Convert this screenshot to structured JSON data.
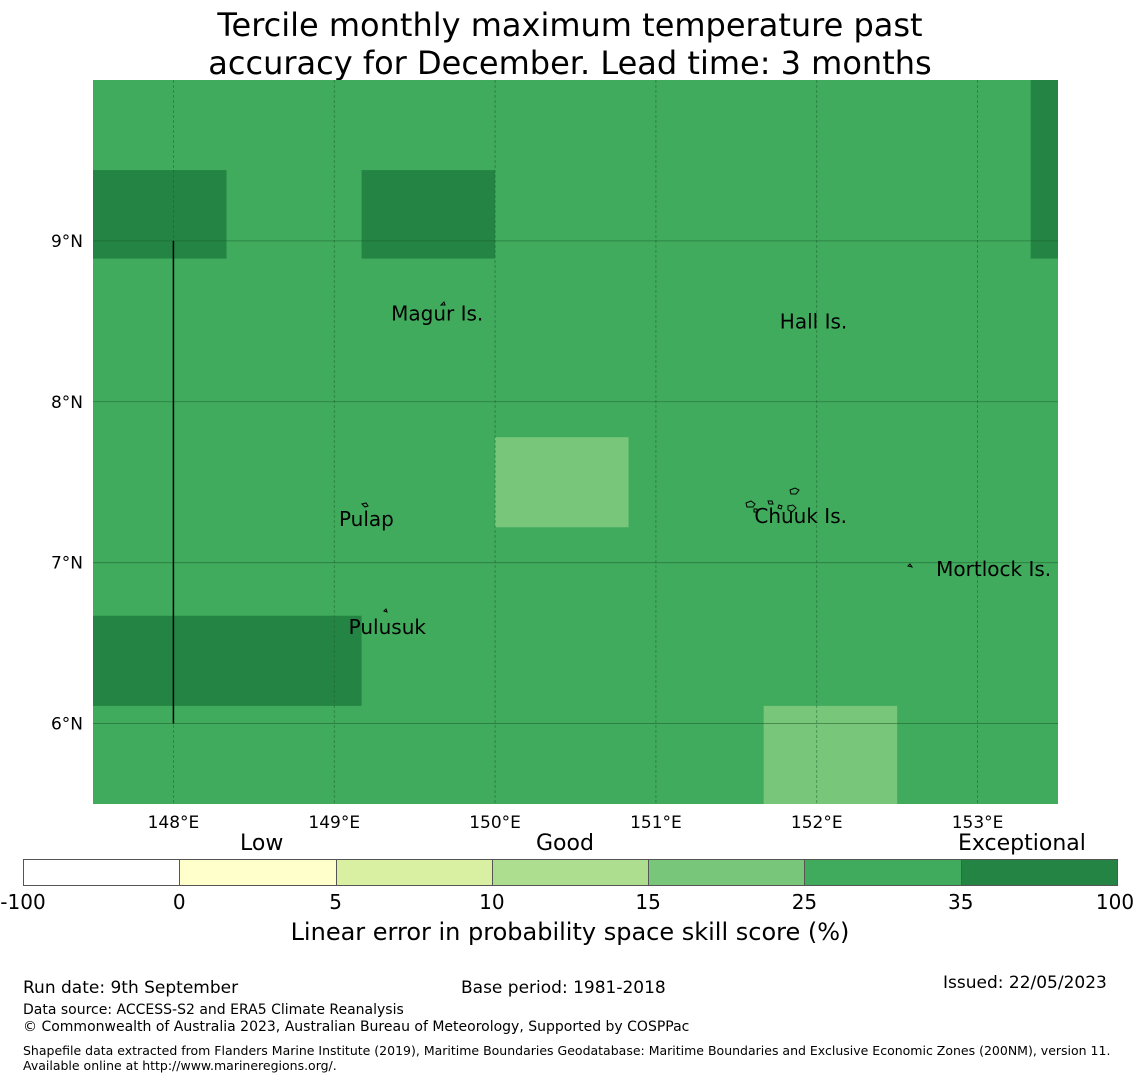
{
  "title_line1": "Tercile monthly maximum temperature past",
  "title_line2": "accuracy for December. Lead time: 3 months",
  "map": {
    "lon_range": [
      147.5,
      153.5
    ],
    "lat_range": [
      5.5,
      10.0
    ],
    "lon_ticks": [
      {
        "value": 148,
        "label": "148°E"
      },
      {
        "value": 149,
        "label": "149°E"
      },
      {
        "value": 150,
        "label": "150°E"
      },
      {
        "value": 151,
        "label": "151°E"
      },
      {
        "value": 152,
        "label": "152°E"
      },
      {
        "value": 153,
        "label": "153°E"
      }
    ],
    "lat_ticks": [
      {
        "value": 9,
        "label": "9°N"
      },
      {
        "value": 8,
        "label": "8°N"
      },
      {
        "value": 7,
        "label": "7°N"
      },
      {
        "value": 6,
        "label": "6°N"
      }
    ],
    "background_color": "#41ab5d",
    "cells": [
      {
        "lon0": 147.5,
        "lon1": 148.33,
        "lat0": 8.89,
        "lat1": 9.44,
        "color": "#238443"
      },
      {
        "lon0": 149.17,
        "lon1": 150.0,
        "lat0": 8.89,
        "lat1": 9.44,
        "color": "#238443"
      },
      {
        "lon0": 153.33,
        "lon1": 153.5,
        "lat0": 8.89,
        "lat1": 10.0,
        "color": "#238443"
      },
      {
        "lon0": 150.0,
        "lon1": 150.83,
        "lat0": 7.22,
        "lat1": 7.78,
        "color": "#78c679"
      },
      {
        "lon0": 147.5,
        "lon1": 149.17,
        "lat0": 6.11,
        "lat1": 6.67,
        "color": "#238443"
      },
      {
        "lon0": 151.67,
        "lon1": 152.5,
        "lat0": 5.5,
        "lat1": 6.11,
        "color": "#78c679"
      }
    ],
    "boundary_line": {
      "lon": 148.0,
      "lat0": 6.0,
      "lat1": 9.0
    },
    "places": [
      {
        "name": "Magur Is.",
        "lon": 149.64,
        "lat": 8.55
      },
      {
        "name": "Hall Is.",
        "lon": 151.98,
        "lat": 8.5
      },
      {
        "name": "Pulap",
        "lon": 149.2,
        "lat": 7.27
      },
      {
        "name": "Chuuk Is.",
        "lon": 151.9,
        "lat": 7.29
      },
      {
        "name": "Mortlock Is.",
        "lon": 153.1,
        "lat": 6.96
      },
      {
        "name": "Pulusuk",
        "lon": 149.33,
        "lat": 6.6
      }
    ]
  },
  "colorbar": {
    "category_labels": [
      "Low",
      "Good",
      "Exceptional"
    ],
    "bins": [
      {
        "from": "-100",
        "to": "0",
        "color": "#ffffff"
      },
      {
        "from": "0",
        "to": "5",
        "color": "#ffffcc"
      },
      {
        "from": "5",
        "to": "10",
        "color": "#d9f0a3"
      },
      {
        "from": "10",
        "to": "15",
        "color": "#addd8e"
      },
      {
        "from": "15",
        "to": "25",
        "color": "#78c679"
      },
      {
        "from": "25",
        "to": "35",
        "color": "#41ab5d"
      },
      {
        "from": "35",
        "to": "100",
        "color": "#238443"
      }
    ],
    "tick_labels": [
      "-100",
      "0",
      "5",
      "10",
      "15",
      "25",
      "35",
      "100"
    ],
    "title": "Linear error in probability space skill score (%)"
  },
  "footer": {
    "run_date": "Run date: 9th September",
    "base_period": "Base period: 1981-2018",
    "issued": "Issued: 22/05/2023",
    "data_source": "Data source: ACCESS-S2 and ERA5 Climate Reanalysis",
    "copyright": "© Commonwealth of Australia 2023, Australian Bureau of Meteorology, Supported by COSPPac",
    "shapefile": "Shapefile data extracted from Flanders Marine Institute (2019), Maritime Boundaries Geodatabase: Maritime Boundaries and Exclusive Economic Zones (200NM), version 11. Available online at http://www.marineregions.org/."
  }
}
